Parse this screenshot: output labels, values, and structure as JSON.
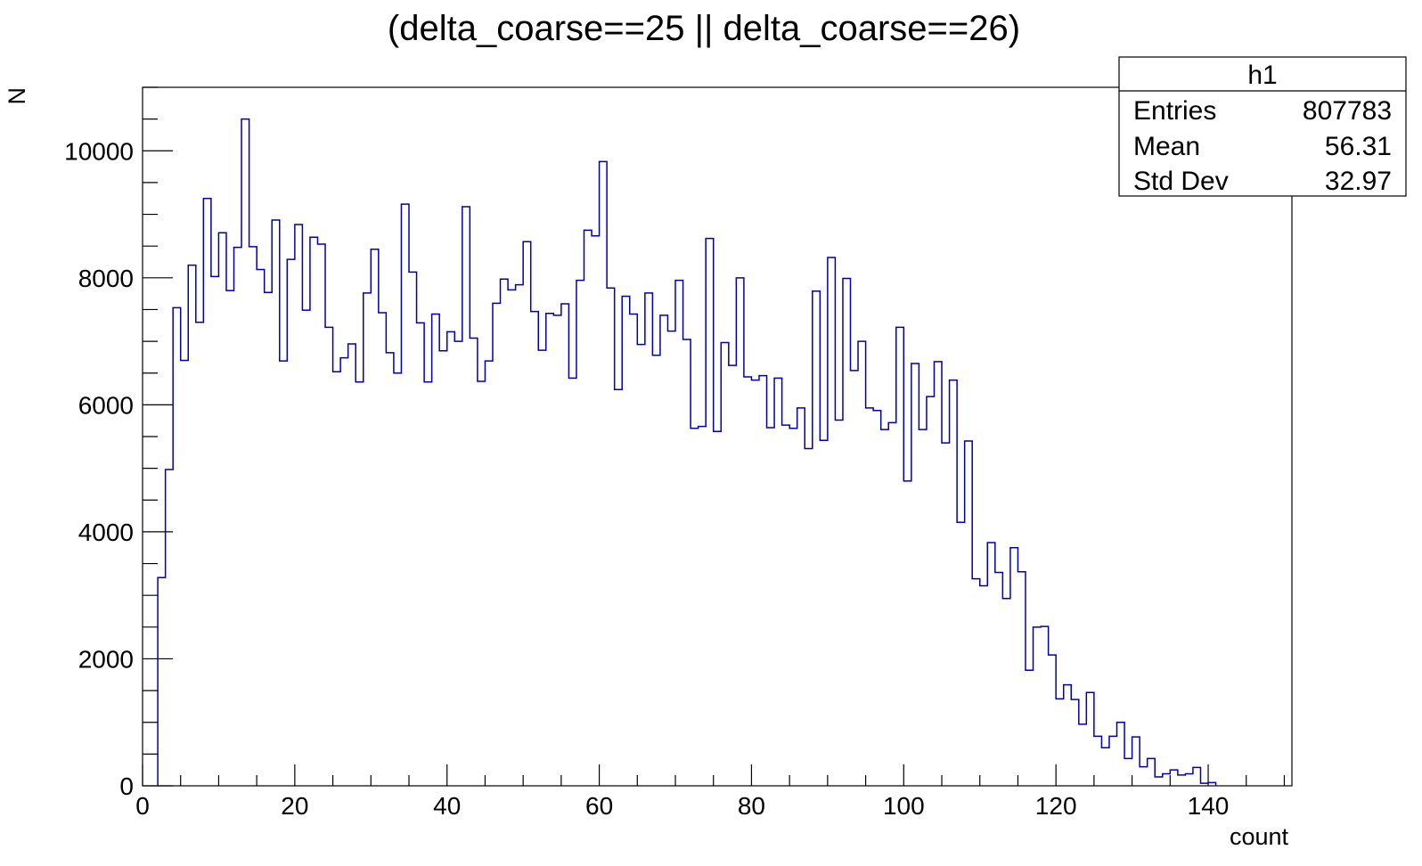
{
  "chart_data": {
    "type": "histogram",
    "title": "(delta_coarse==25 || delta_coarse==26)",
    "xlabel": "count",
    "ylabel": "N",
    "xlim": [
      0,
      151
    ],
    "ylim": [
      0,
      11000
    ],
    "bin_width": 1,
    "grid": false,
    "line_color": "#0000aa",
    "x_ticks": [
      0,
      20,
      40,
      60,
      80,
      100,
      120,
      140
    ],
    "y_ticks": [
      0,
      2000,
      4000,
      6000,
      8000,
      10000
    ],
    "bin_start": 2,
    "values": [
      3280,
      4980,
      7530,
      6700,
      8200,
      7300,
      9250,
      8020,
      8710,
      7800,
      8480,
      10500,
      8490,
      8130,
      7770,
      8910,
      6690,
      8290,
      8840,
      7490,
      8640,
      8530,
      7220,
      6520,
      6740,
      6960,
      6360,
      7760,
      8450,
      7450,
      6820,
      6500,
      9160,
      8090,
      7290,
      6360,
      7430,
      6850,
      7150,
      7000,
      9120,
      7050,
      6370,
      6690,
      7600,
      7980,
      7810,
      7890,
      8570,
      7470,
      6860,
      7440,
      7410,
      7590,
      6420,
      7960,
      8750,
      8660,
      9830,
      7840,
      6240,
      7710,
      7430,
      6950,
      7760,
      6780,
      7410,
      7160,
      7960,
      7030,
      5630,
      5660,
      8620,
      5580,
      6980,
      6620,
      8000,
      6440,
      6390,
      6460,
      5640,
      6420,
      5680,
      5630,
      5950,
      5310,
      7790,
      5440,
      8320,
      5760,
      7990,
      6540,
      7000,
      5950,
      5910,
      5610,
      5720,
      7220,
      4800,
      6650,
      5610,
      6130,
      6680,
      5400,
      6390,
      4150,
      5430,
      3260,
      3150,
      3830,
      3360,
      2950,
      3750,
      3370,
      1820,
      2500,
      2510,
      2060,
      1370,
      1590,
      1360,
      970,
      1470,
      780,
      600,
      780,
      1000,
      430,
      770,
      300,
      430,
      140,
      190,
      250,
      170,
      190,
      290,
      40,
      50
    ]
  },
  "stats_box": {
    "name": "h1",
    "rows": [
      {
        "label": "Entries",
        "value": "807783"
      },
      {
        "label": "Mean",
        "value": "56.31"
      },
      {
        "label": "Std Dev",
        "value": "32.97"
      }
    ]
  }
}
